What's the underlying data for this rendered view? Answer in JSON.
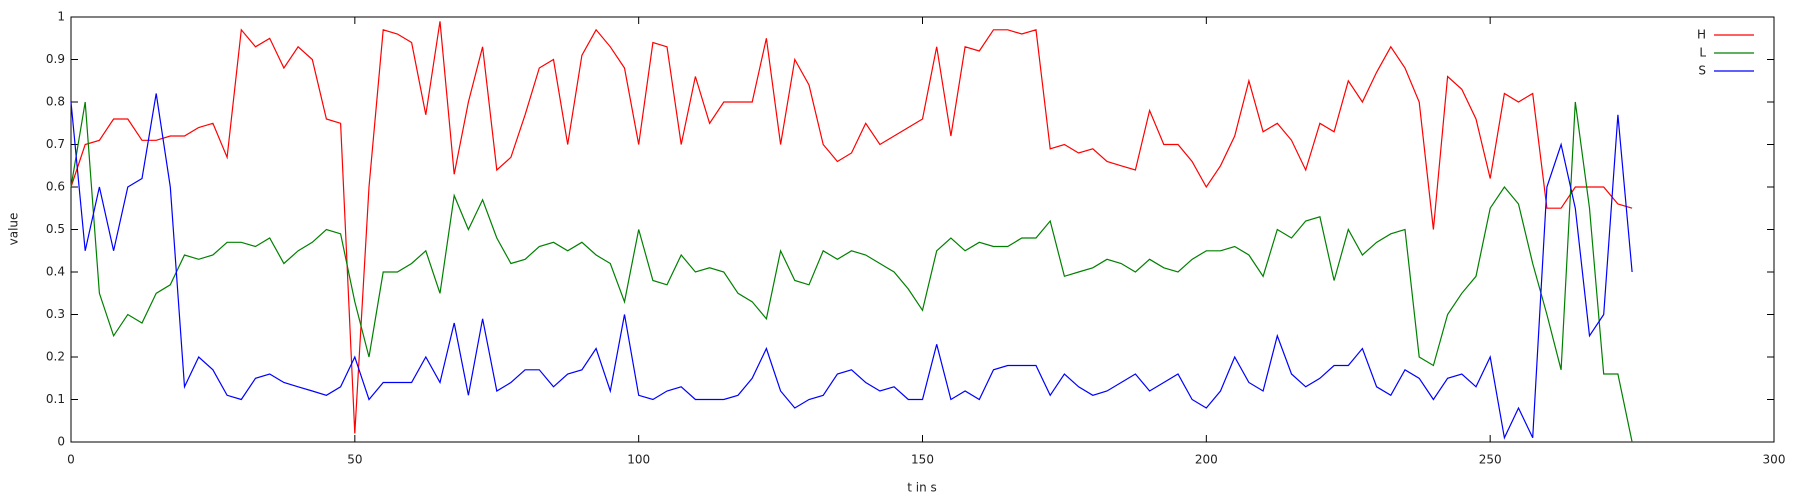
{
  "chart_data": {
    "type": "line",
    "xlabel": "t in s",
    "ylabel": "value",
    "xlim": [
      0,
      300
    ],
    "ylim": [
      0,
      1
    ],
    "xticks": [
      0,
      50,
      100,
      150,
      200,
      250,
      300
    ],
    "yticks": [
      0,
      0.1,
      0.2,
      0.3,
      0.4,
      0.5,
      0.6,
      0.7,
      0.8,
      0.9,
      1
    ],
    "legend": "upper right",
    "x": [
      0,
      2.5,
      5,
      7.5,
      10,
      12.5,
      15,
      17.5,
      20,
      22.5,
      25,
      27.5,
      30,
      32.5,
      35,
      37.5,
      40,
      42.5,
      45,
      47.5,
      50,
      52.5,
      55,
      57.5,
      60,
      62.5,
      65,
      67.5,
      70,
      72.5,
      75,
      77.5,
      80,
      82.5,
      85,
      87.5,
      90,
      92.5,
      95,
      97.5,
      100,
      102.5,
      105,
      107.5,
      110,
      112.5,
      115,
      117.5,
      120,
      122.5,
      125,
      127.5,
      130,
      132.5,
      135,
      137.5,
      140,
      142.5,
      145,
      147.5,
      150,
      152.5,
      155,
      157.5,
      160,
      162.5,
      165,
      167.5,
      170,
      172.5,
      175,
      177.5,
      180,
      182.5,
      185,
      187.5,
      190,
      192.5,
      195,
      197.5,
      200,
      202.5,
      205,
      207.5,
      210,
      212.5,
      215,
      217.5,
      220,
      222.5,
      225,
      227.5,
      230,
      232.5,
      235,
      237.5,
      240,
      242.5,
      245,
      247.5,
      250,
      252.5,
      255,
      257.5,
      260,
      262.5,
      265,
      267.5,
      270,
      272.5,
      275
    ],
    "series": [
      {
        "name": "H",
        "color": "#ff0000",
        "values": [
          0.6,
          0.7,
          0.71,
          0.76,
          0.76,
          0.71,
          0.71,
          0.72,
          0.72,
          0.74,
          0.75,
          0.67,
          0.97,
          0.93,
          0.95,
          0.88,
          0.93,
          0.9,
          0.76,
          0.75,
          0.02,
          0.6,
          0.97,
          0.96,
          0.94,
          0.77,
          0.99,
          0.63,
          0.8,
          0.93,
          0.64,
          0.67,
          0.77,
          0.88,
          0.9,
          0.7,
          0.91,
          0.97,
          0.93,
          0.88,
          0.7,
          0.94,
          0.93,
          0.7,
          0.86,
          0.75,
          0.8,
          0.8,
          0.8,
          0.95,
          0.7,
          0.9,
          0.84,
          0.7,
          0.66,
          0.68,
          0.75,
          0.7,
          0.72,
          0.74,
          0.76,
          0.93,
          0.72,
          0.93,
          0.92,
          0.97,
          0.97,
          0.96,
          0.97,
          0.69,
          0.7,
          0.68,
          0.69,
          0.66,
          0.65,
          0.64,
          0.78,
          0.7,
          0.7,
          0.66,
          0.6,
          0.65,
          0.72,
          0.85,
          0.73,
          0.75,
          0.71,
          0.64,
          0.75,
          0.73,
          0.85,
          0.8,
          0.87,
          0.93,
          0.88,
          0.8,
          0.5,
          0.86,
          0.83,
          0.76,
          0.62,
          0.82,
          0.8,
          0.82,
          0.55,
          0.55,
          0.6,
          0.6,
          0.6,
          0.56,
          0.55
        ]
      },
      {
        "name": "L",
        "color": "#008000",
        "values": [
          0.6,
          0.8,
          0.35,
          0.25,
          0.3,
          0.28,
          0.35,
          0.37,
          0.44,
          0.43,
          0.44,
          0.47,
          0.47,
          0.46,
          0.48,
          0.42,
          0.45,
          0.47,
          0.5,
          0.49,
          0.33,
          0.2,
          0.4,
          0.4,
          0.42,
          0.45,
          0.35,
          0.58,
          0.5,
          0.57,
          0.48,
          0.42,
          0.43,
          0.46,
          0.47,
          0.45,
          0.47,
          0.44,
          0.42,
          0.33,
          0.5,
          0.38,
          0.37,
          0.44,
          0.4,
          0.41,
          0.4,
          0.35,
          0.33,
          0.29,
          0.45,
          0.38,
          0.37,
          0.45,
          0.43,
          0.45,
          0.44,
          0.42,
          0.4,
          0.36,
          0.31,
          0.45,
          0.48,
          0.45,
          0.47,
          0.46,
          0.46,
          0.48,
          0.48,
          0.52,
          0.39,
          0.4,
          0.41,
          0.43,
          0.42,
          0.4,
          0.43,
          0.41,
          0.4,
          0.43,
          0.45,
          0.45,
          0.46,
          0.44,
          0.39,
          0.5,
          0.48,
          0.52,
          0.53,
          0.38,
          0.5,
          0.44,
          0.47,
          0.49,
          0.5,
          0.2,
          0.18,
          0.3,
          0.35,
          0.39,
          0.55,
          0.6,
          0.56,
          0.42,
          0.3,
          0.17,
          0.8,
          0.55,
          0.16,
          0.16,
          0.0
        ]
      },
      {
        "name": "S",
        "color": "#0000ff",
        "values": [
          0.8,
          0.45,
          0.6,
          0.45,
          0.6,
          0.62,
          0.82,
          0.6,
          0.13,
          0.2,
          0.17,
          0.11,
          0.1,
          0.15,
          0.16,
          0.14,
          0.13,
          0.12,
          0.11,
          0.13,
          0.2,
          0.1,
          0.14,
          0.14,
          0.14,
          0.2,
          0.14,
          0.28,
          0.11,
          0.29,
          0.12,
          0.14,
          0.17,
          0.17,
          0.13,
          0.16,
          0.17,
          0.22,
          0.12,
          0.3,
          0.11,
          0.1,
          0.12,
          0.13,
          0.1,
          0.1,
          0.1,
          0.11,
          0.15,
          0.22,
          0.12,
          0.08,
          0.1,
          0.11,
          0.16,
          0.17,
          0.14,
          0.12,
          0.13,
          0.1,
          0.1,
          0.23,
          0.1,
          0.12,
          0.1,
          0.17,
          0.18,
          0.18,
          0.18,
          0.11,
          0.16,
          0.13,
          0.11,
          0.12,
          0.14,
          0.16,
          0.12,
          0.14,
          0.16,
          0.1,
          0.08,
          0.12,
          0.2,
          0.14,
          0.12,
          0.25,
          0.16,
          0.13,
          0.15,
          0.18,
          0.18,
          0.22,
          0.13,
          0.11,
          0.17,
          0.15,
          0.1,
          0.15,
          0.16,
          0.13,
          0.2,
          0.01,
          0.08,
          0.01,
          0.6,
          0.7,
          0.55,
          0.25,
          0.3,
          0.77,
          0.4
        ]
      }
    ]
  }
}
